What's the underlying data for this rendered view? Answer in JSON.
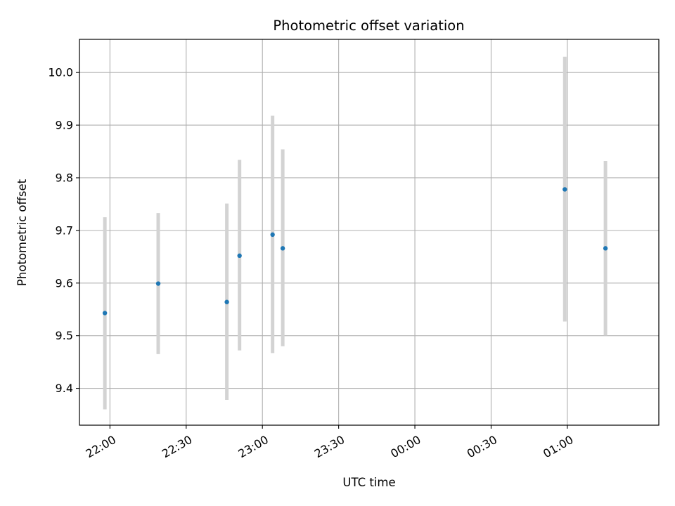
{
  "chart_data": {
    "type": "scatter",
    "title": "Photometric offset variation",
    "xlabel": "UTC time",
    "ylabel": "Photometric offset",
    "x_tick_labels": [
      "22:00",
      "22:30",
      "23:00",
      "23:30",
      "00:00",
      "00:30",
      "01:00"
    ],
    "y_tick_labels": [
      "9.4",
      "9.5",
      "9.6",
      "9.7",
      "9.8",
      "9.9",
      "10.0"
    ],
    "y_ticks": [
      9.4,
      9.5,
      9.6,
      9.7,
      9.8,
      9.9,
      10.0
    ],
    "xlim": [
      "21:48",
      "01:36"
    ],
    "ylim": [
      9.33,
      10.063
    ],
    "grid": true,
    "colors": {
      "points": "#1f77b4",
      "errorbars": "#d3d3d3",
      "grid": "#b0b0b0"
    },
    "points": [
      {
        "x": "21:58",
        "y": 9.543,
        "y_low": 9.36,
        "y_high": 9.725
      },
      {
        "x": "22:19",
        "y": 9.599,
        "y_low": 9.465,
        "y_high": 9.733
      },
      {
        "x": "22:46",
        "y": 9.564,
        "y_low": 9.378,
        "y_high": 9.751
      },
      {
        "x": "22:51",
        "y": 9.652,
        "y_low": 9.472,
        "y_high": 9.834
      },
      {
        "x": "23:04",
        "y": 9.692,
        "y_low": 9.467,
        "y_high": 9.918
      },
      {
        "x": "23:08",
        "y": 9.666,
        "y_low": 9.48,
        "y_high": 9.854
      },
      {
        "x": "00:59",
        "y": 9.778,
        "y_low": 9.527,
        "y_high": 10.03
      },
      {
        "x": "01:15",
        "y": 9.666,
        "y_low": 9.5,
        "y_high": 9.832
      }
    ]
  }
}
